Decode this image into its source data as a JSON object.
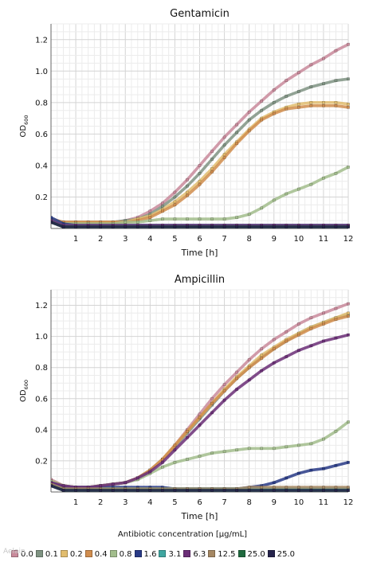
{
  "chart_data": [
    {
      "type": "line",
      "title": "Gentamicin",
      "xlabel": "Time [h]",
      "ylabel": "OD600",
      "xlim": [
        0,
        12
      ],
      "ylim": [
        0,
        1.3
      ],
      "x_ticks": [
        "1",
        "2",
        "3",
        "4",
        "5",
        "6",
        "7",
        "8",
        "9",
        "10",
        "11",
        "12"
      ],
      "y_ticks": [
        "0.2",
        "0.4",
        "0.6",
        "0.8",
        "1.0",
        "1.2"
      ],
      "grid": true,
      "x": [
        0,
        0.5,
        1,
        1.5,
        2,
        2.5,
        3,
        3.5,
        4,
        4.5,
        5,
        5.5,
        6,
        6.5,
        7,
        7.5,
        8,
        8.5,
        9,
        9.5,
        10,
        10.5,
        11,
        11.5,
        12
      ],
      "series": [
        {
          "name": "0.0",
          "values": [
            0.06,
            0.04,
            0.04,
            0.04,
            0.04,
            0.04,
            0.05,
            0.07,
            0.11,
            0.16,
            0.23,
            0.31,
            0.4,
            0.49,
            0.58,
            0.66,
            0.74,
            0.81,
            0.88,
            0.94,
            0.99,
            1.04,
            1.08,
            1.13,
            1.17
          ]
        },
        {
          "name": "0.1",
          "values": [
            0.06,
            0.04,
            0.04,
            0.04,
            0.04,
            0.04,
            0.05,
            0.06,
            0.09,
            0.14,
            0.2,
            0.27,
            0.35,
            0.44,
            0.53,
            0.61,
            0.69,
            0.75,
            0.8,
            0.84,
            0.87,
            0.9,
            0.92,
            0.94,
            0.95
          ]
        },
        {
          "name": "0.2",
          "values": [
            0.06,
            0.04,
            0.04,
            0.04,
            0.04,
            0.04,
            0.04,
            0.06,
            0.08,
            0.12,
            0.17,
            0.23,
            0.3,
            0.38,
            0.47,
            0.55,
            0.63,
            0.7,
            0.74,
            0.77,
            0.79,
            0.8,
            0.8,
            0.8,
            0.79
          ]
        },
        {
          "name": "0.4",
          "values": [
            0.06,
            0.04,
            0.04,
            0.04,
            0.04,
            0.04,
            0.04,
            0.05,
            0.07,
            0.11,
            0.15,
            0.21,
            0.28,
            0.36,
            0.45,
            0.54,
            0.62,
            0.69,
            0.73,
            0.76,
            0.77,
            0.78,
            0.78,
            0.78,
            0.77
          ]
        },
        {
          "name": "0.8",
          "values": [
            0.06,
            0.03,
            0.03,
            0.03,
            0.03,
            0.03,
            0.04,
            0.04,
            0.05,
            0.06,
            0.06,
            0.06,
            0.06,
            0.06,
            0.06,
            0.07,
            0.09,
            0.13,
            0.18,
            0.22,
            0.25,
            0.28,
            0.32,
            0.35,
            0.39
          ]
        },
        {
          "name": "1.6",
          "values": [
            0.07,
            0.03,
            0.02,
            0.02,
            0.02,
            0.02,
            0.02,
            0.02,
            0.02,
            0.02,
            0.02,
            0.02,
            0.02,
            0.02,
            0.02,
            0.02,
            0.02,
            0.02,
            0.02,
            0.02,
            0.02,
            0.02,
            0.02,
            0.02,
            0.02
          ]
        },
        {
          "name": "3.1",
          "values": [
            0.05,
            0.02,
            0.02,
            0.02,
            0.02,
            0.02,
            0.02,
            0.02,
            0.02,
            0.02,
            0.02,
            0.02,
            0.02,
            0.02,
            0.02,
            0.02,
            0.02,
            0.02,
            0.02,
            0.02,
            0.02,
            0.02,
            0.02,
            0.02,
            0.02
          ]
        },
        {
          "name": "6.3",
          "values": [
            0.05,
            0.02,
            0.02,
            0.02,
            0.02,
            0.02,
            0.02,
            0.02,
            0.02,
            0.02,
            0.02,
            0.02,
            0.02,
            0.02,
            0.02,
            0.02,
            0.02,
            0.02,
            0.02,
            0.02,
            0.02,
            0.02,
            0.02,
            0.02,
            0.02
          ]
        },
        {
          "name": "12.5",
          "values": [
            0.04,
            0.01,
            0.01,
            0.01,
            0.01,
            0.01,
            0.01,
            0.01,
            0.01,
            0.01,
            0.01,
            0.01,
            0.01,
            0.01,
            0.01,
            0.01,
            0.01,
            0.01,
            0.01,
            0.01,
            0.01,
            0.01,
            0.01,
            0.01,
            0.01
          ]
        },
        {
          "name": "25.0",
          "values": [
            0.04,
            0.01,
            0.01,
            0.01,
            0.01,
            0.01,
            0.01,
            0.01,
            0.01,
            0.01,
            0.01,
            0.01,
            0.01,
            0.01,
            0.01,
            0.01,
            0.01,
            0.01,
            0.01,
            0.01,
            0.01,
            0.01,
            0.01,
            0.01,
            0.01
          ]
        },
        {
          "name": "25.0",
          "values": [
            0.04,
            0.01,
            0.01,
            0.01,
            0.01,
            0.01,
            0.01,
            0.01,
            0.01,
            0.01,
            0.01,
            0.01,
            0.01,
            0.01,
            0.01,
            0.01,
            0.01,
            0.01,
            0.01,
            0.01,
            0.01,
            0.01,
            0.01,
            0.01,
            0.01
          ]
        }
      ]
    },
    {
      "type": "line",
      "title": "Ampicillin",
      "xlabel": "Time [h]",
      "ylabel": "OD600",
      "xlim": [
        0,
        12
      ],
      "ylim": [
        0,
        1.3
      ],
      "x_ticks": [
        "1",
        "2",
        "3",
        "4",
        "5",
        "6",
        "7",
        "8",
        "9",
        "10",
        "11",
        "12"
      ],
      "y_ticks": [
        "0.2",
        "0.4",
        "0.6",
        "0.8",
        "1.0",
        "1.2"
      ],
      "grid": true,
      "x": [
        0,
        0.5,
        1,
        1.5,
        2,
        2.5,
        3,
        3.5,
        4,
        4.5,
        5,
        5.5,
        6,
        6.5,
        7,
        7.5,
        8,
        8.5,
        9,
        9.5,
        10,
        10.5,
        11,
        11.5,
        12
      ],
      "series": [
        {
          "name": "0.0",
          "values": [
            0.08,
            0.04,
            0.03,
            0.03,
            0.04,
            0.05,
            0.06,
            0.09,
            0.14,
            0.21,
            0.3,
            0.4,
            0.5,
            0.6,
            0.69,
            0.77,
            0.85,
            0.92,
            0.98,
            1.03,
            1.08,
            1.12,
            1.15,
            1.18,
            1.21
          ]
        },
        {
          "name": "0.1",
          "values": [
            0.07,
            0.04,
            0.03,
            0.03,
            0.04,
            0.05,
            0.06,
            0.09,
            0.14,
            0.21,
            0.29,
            0.38,
            0.47,
            0.56,
            0.65,
            0.73,
            0.8,
            0.87,
            0.92,
            0.97,
            1.02,
            1.06,
            1.09,
            1.12,
            1.14
          ]
        },
        {
          "name": "0.2",
          "values": [
            0.07,
            0.04,
            0.03,
            0.03,
            0.04,
            0.05,
            0.06,
            0.09,
            0.14,
            0.21,
            0.3,
            0.39,
            0.48,
            0.57,
            0.66,
            0.74,
            0.81,
            0.88,
            0.93,
            0.98,
            1.02,
            1.06,
            1.09,
            1.12,
            1.15
          ]
        },
        {
          "name": "0.4",
          "values": [
            0.07,
            0.04,
            0.03,
            0.03,
            0.04,
            0.05,
            0.06,
            0.09,
            0.14,
            0.21,
            0.3,
            0.39,
            0.48,
            0.57,
            0.65,
            0.73,
            0.8,
            0.86,
            0.92,
            0.97,
            1.01,
            1.05,
            1.08,
            1.11,
            1.13
          ]
        },
        {
          "name": "0.8",
          "values": [
            0.07,
            0.04,
            0.03,
            0.03,
            0.04,
            0.05,
            0.06,
            0.08,
            0.12,
            0.16,
            0.19,
            0.21,
            0.23,
            0.25,
            0.26,
            0.27,
            0.28,
            0.28,
            0.28,
            0.29,
            0.3,
            0.31,
            0.34,
            0.39,
            0.45
          ]
        },
        {
          "name": "1.6",
          "values": [
            0.06,
            0.03,
            0.03,
            0.03,
            0.03,
            0.03,
            0.03,
            0.03,
            0.03,
            0.03,
            0.02,
            0.02,
            0.02,
            0.02,
            0.02,
            0.02,
            0.03,
            0.04,
            0.06,
            0.09,
            0.12,
            0.14,
            0.15,
            0.17,
            0.19
          ]
        },
        {
          "name": "3.1",
          "values": [
            0.05,
            0.02,
            0.02,
            0.02,
            0.02,
            0.02,
            0.02,
            0.02,
            0.02,
            0.02,
            0.02,
            0.02,
            0.02,
            0.02,
            0.02,
            0.02,
            0.02,
            0.02,
            0.02,
            0.02,
            0.02,
            0.02,
            0.02,
            0.02,
            0.02
          ]
        },
        {
          "name": "6.3",
          "values": [
            0.06,
            0.04,
            0.03,
            0.03,
            0.04,
            0.05,
            0.06,
            0.09,
            0.13,
            0.19,
            0.27,
            0.35,
            0.43,
            0.51,
            0.59,
            0.66,
            0.72,
            0.78,
            0.83,
            0.87,
            0.91,
            0.94,
            0.97,
            0.99,
            1.01
          ]
        },
        {
          "name": "12.5",
          "values": [
            0.05,
            0.02,
            0.02,
            0.02,
            0.02,
            0.02,
            0.02,
            0.02,
            0.02,
            0.02,
            0.02,
            0.02,
            0.02,
            0.02,
            0.02,
            0.02,
            0.03,
            0.03,
            0.03,
            0.03,
            0.03,
            0.03,
            0.03,
            0.03,
            0.03
          ]
        },
        {
          "name": "25.0",
          "values": [
            0.04,
            0.01,
            0.01,
            0.01,
            0.01,
            0.01,
            0.01,
            0.01,
            0.01,
            0.01,
            0.01,
            0.01,
            0.01,
            0.01,
            0.01,
            0.01,
            0.01,
            0.01,
            0.01,
            0.01,
            0.01,
            0.01,
            0.01,
            0.01,
            0.01
          ]
        },
        {
          "name": "25.0",
          "values": [
            0.04,
            0.01,
            0.01,
            0.01,
            0.01,
            0.01,
            0.01,
            0.01,
            0.01,
            0.01,
            0.01,
            0.01,
            0.01,
            0.01,
            0.01,
            0.01,
            0.01,
            0.01,
            0.01,
            0.01,
            0.01,
            0.01,
            0.01,
            0.01,
            0.01
          ]
        }
      ]
    }
  ],
  "legend": {
    "title": "Antibiotic concentration [μg/mL]",
    "placement": "bottom",
    "items": [
      {
        "label": "0.0",
        "color": "#c98a9b"
      },
      {
        "label": "0.1",
        "color": "#7f9382"
      },
      {
        "label": "0.2",
        "color": "#e2bd6e"
      },
      {
        "label": "0.4",
        "color": "#d08d4e"
      },
      {
        "label": "0.8",
        "color": "#a2bd8c"
      },
      {
        "label": "1.6",
        "color": "#283a86"
      },
      {
        "label": "3.1",
        "color": "#3fa6a0"
      },
      {
        "label": "6.3",
        "color": "#6b2e77"
      },
      {
        "label": "12.5",
        "color": "#a58763"
      },
      {
        "label": "25.0",
        "color": "#1f6a3e"
      },
      {
        "label": "25.0",
        "color": "#25234b"
      }
    ]
  },
  "watermark": "Aelain"
}
